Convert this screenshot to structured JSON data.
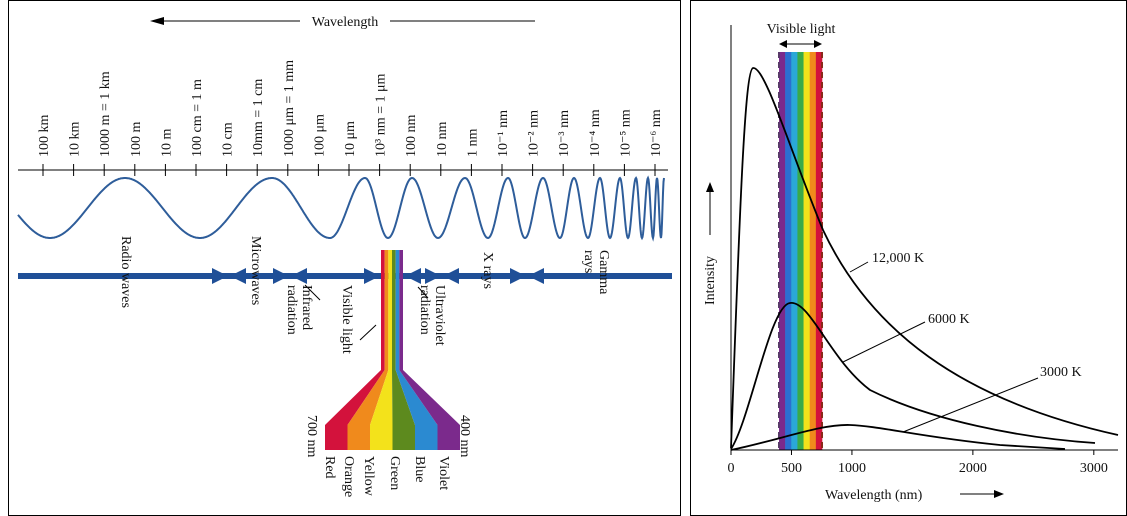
{
  "spectrum": {
    "title": "Wavelength",
    "scale": [
      "100 km",
      "10 km",
      "1000 m = 1 km",
      "100 m",
      "10 m",
      "100 cm = 1 m",
      "10 cm",
      "10mm = 1 cm",
      "1000 μm = 1 mm",
      "100 μm",
      "10 μm",
      "10³ nm = 1 μm",
      "100 nm",
      "10 nm",
      "1 nm",
      "10⁻¹ nm",
      "10⁻² nm",
      "10⁻³ nm",
      "10⁻⁴ nm",
      "10⁻⁵ nm",
      "10⁻⁶ nm"
    ],
    "bands": {
      "radio": [
        "Radio waves"
      ],
      "micro": [
        "Microwaves"
      ],
      "infrared": [
        "Infrared",
        "radiation"
      ],
      "visible": [
        "Visible light"
      ],
      "ultraviolet": [
        "Ultraviolet",
        "radiation"
      ],
      "xrays": [
        "X rays"
      ],
      "gamma": [
        "Gamma",
        "rays"
      ]
    },
    "colors": {
      "long": "700 nm",
      "short": "400 nm",
      "names": [
        "Red",
        "Orange",
        "Yellow",
        "Green",
        "Blue",
        "Violet"
      ]
    }
  },
  "blackbody": {
    "band_label": "Visible light",
    "y_label": "Intensity",
    "x_label": "Wavelength (nm)",
    "xlim": [
      0,
      3200
    ],
    "xticks": [
      0,
      500,
      1000,
      2000,
      3000
    ],
    "curves": [
      "12,000 K",
      "6000 K",
      "3000 K"
    ]
  }
}
